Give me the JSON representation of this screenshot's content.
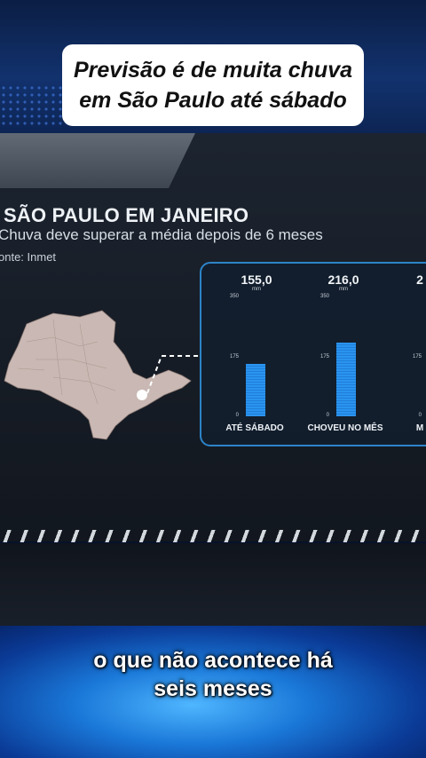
{
  "video": {
    "headline_line1": "Previsão é de muita chuva",
    "headline_line2": "em São Paulo até sábado",
    "subtitle_line1": "o que não acontece há",
    "subtitle_line2": "seis meses"
  },
  "broadcast_graphic": {
    "title": "SÃO PAULO EM JANEIRO",
    "subtitle": "Chuva deve superar a média depois de 6 meses",
    "source": "onte: Inmet",
    "unit": "mm",
    "colors": {
      "bar": "#2a94f0",
      "panel_border": "#2c84c8"
    }
  },
  "chart_data": {
    "type": "bar",
    "categories": [
      "ATÉ SÁBADO",
      "CHOVEU NO MÊS",
      "M"
    ],
    "values": [
      155.0,
      216.0,
      null
    ],
    "value_labels": [
      "155,0",
      "216,0",
      "2"
    ],
    "ylim": [
      0,
      350
    ],
    "yticks": [
      "350",
      "175",
      "0"
    ]
  }
}
